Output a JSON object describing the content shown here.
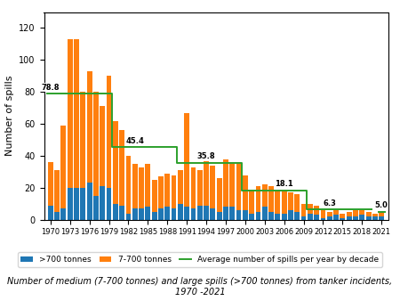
{
  "chart_data": {
    "type": "bar",
    "stacked": true,
    "grid": false,
    "legend": "lower center",
    "ylabel": "Number of spills",
    "caption": "Number of medium (7-700 tonnes) and large spills (>700 tonnes) from tanker incidents, 1970 -2021",
    "x": [
      1970,
      1971,
      1972,
      1973,
      1974,
      1975,
      1976,
      1977,
      1978,
      1979,
      1980,
      1981,
      1982,
      1983,
      1984,
      1985,
      1986,
      1987,
      1988,
      1989,
      1990,
      1991,
      1992,
      1993,
      1994,
      1995,
      1996,
      1997,
      1998,
      1999,
      2000,
      2001,
      2002,
      2003,
      2004,
      2005,
      2006,
      2007,
      2008,
      2009,
      2010,
      2011,
      2012,
      2013,
      2014,
      2015,
      2016,
      2017,
      2018,
      2019,
      2020,
      2021
    ],
    "xlim": [
      1969,
      2022
    ],
    "xticks": [
      1970,
      1973,
      1976,
      1979,
      1982,
      1985,
      1988,
      1991,
      1994,
      1997,
      2000,
      2003,
      2006,
      2009,
      2012,
      2015,
      2018,
      2021
    ],
    "ylim": [
      0,
      130
    ],
    "yticks": [
      0,
      20,
      40,
      60,
      80,
      100,
      120
    ],
    "series": [
      {
        "name": ">700 tonnes",
        "type": "bar",
        "values": [
          9,
          5,
          7,
          20,
          20,
          20,
          23,
          15,
          21,
          20,
          10,
          9,
          4,
          7,
          7,
          8,
          5,
          7,
          8,
          7,
          10,
          8,
          7,
          9,
          9,
          7,
          5,
          8,
          8,
          6,
          6,
          4,
          5,
          8,
          5,
          4,
          4,
          6,
          5,
          2,
          4,
          3,
          1,
          2,
          3,
          1,
          2,
          2,
          3,
          2,
          2,
          2
        ]
      },
      {
        "name": "7-700 tonnes",
        "type": "bar",
        "values": [
          27,
          26,
          52,
          93,
          93,
          60,
          70,
          65,
          50,
          70,
          52,
          47,
          36,
          28,
          26,
          27,
          20,
          20,
          21,
          21,
          21,
          59,
          26,
          22,
          32,
          27,
          21,
          30,
          27,
          29,
          22,
          15,
          16,
          14,
          16,
          14,
          15,
          11,
          11,
          8,
          6,
          6,
          5,
          3,
          3,
          3,
          3,
          4,
          3,
          3,
          2,
          3
        ]
      },
      {
        "name": "Average number of spills per year by decade",
        "type": "line",
        "line_style": "solid",
        "values": [
          78.8,
          78.8,
          78.8,
          78.8,
          78.8,
          78.8,
          78.8,
          78.8,
          78.8,
          78.8,
          45.4,
          45.4,
          45.4,
          45.4,
          45.4,
          45.4,
          45.4,
          45.4,
          45.4,
          45.4,
          35.8,
          35.8,
          35.8,
          35.8,
          35.8,
          35.8,
          35.8,
          35.8,
          35.8,
          35.8,
          18.1,
          18.1,
          18.1,
          18.1,
          18.1,
          18.1,
          18.1,
          18.1,
          18.1,
          18.1,
          6.3,
          6.3,
          6.3,
          6.3,
          6.3,
          6.3,
          6.3,
          6.3,
          6.3,
          6.3,
          null,
          5.0
        ]
      }
    ],
    "annotations": [
      {
        "x": 1970,
        "y": 78.8,
        "text": "78.8"
      },
      {
        "x": 1983,
        "y": 45.4,
        "text": "45.4"
      },
      {
        "x": 1994,
        "y": 35.8,
        "text": "35.8"
      },
      {
        "x": 2006,
        "y": 18.1,
        "text": "18.1"
      },
      {
        "x": 2013,
        "y": 6.3,
        "text": "6.3"
      },
      {
        "x": 2021,
        "y": 5.0,
        "text": "5.0"
      }
    ]
  }
}
